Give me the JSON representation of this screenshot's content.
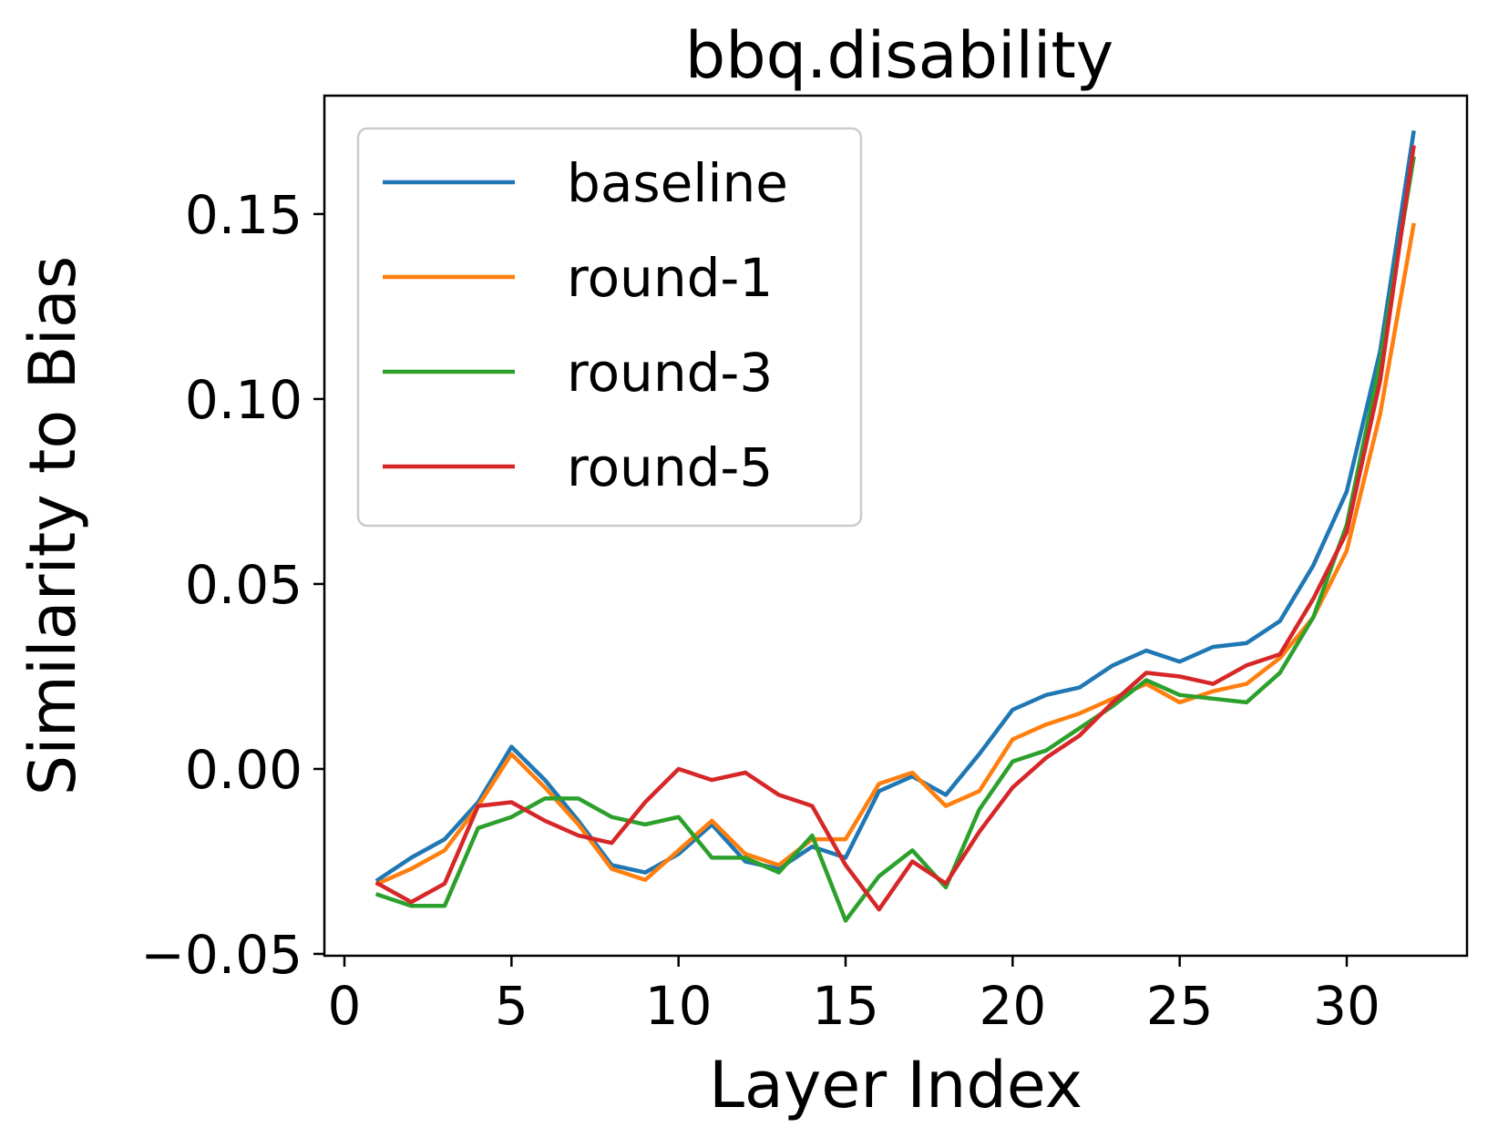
{
  "chart_data": {
    "type": "line",
    "title": "bbq.disability",
    "xlabel": "Layer Index",
    "ylabel": "Similarity to Bias",
    "xlim": [
      -0.6,
      33.6
    ],
    "ylim": [
      -0.0505,
      0.182
    ],
    "xticks": [
      0,
      5,
      10,
      15,
      20,
      25,
      30
    ],
    "xtick_labels": [
      "0",
      "5",
      "10",
      "15",
      "20",
      "25",
      "30"
    ],
    "yticks": [
      -0.05,
      0.0,
      0.05,
      0.1,
      0.15
    ],
    "ytick_labels": [
      "−0.05",
      "0.00",
      "0.05",
      "0.10",
      "0.15"
    ],
    "grid": false,
    "legend_position": "upper-left",
    "x": [
      1,
      2,
      3,
      4,
      5,
      6,
      7,
      8,
      9,
      10,
      11,
      12,
      13,
      14,
      15,
      16,
      17,
      18,
      19,
      20,
      21,
      22,
      23,
      24,
      25,
      26,
      27,
      28,
      29,
      30,
      31,
      32
    ],
    "series": [
      {
        "name": "baseline",
        "color": "#1f77b4",
        "values": [
          -0.03,
          -0.024,
          -0.019,
          -0.009,
          0.006,
          -0.003,
          -0.014,
          -0.026,
          -0.028,
          -0.023,
          -0.015,
          -0.025,
          -0.027,
          -0.021,
          -0.024,
          -0.006,
          -0.002,
          -0.007,
          0.004,
          0.016,
          0.02,
          0.022,
          0.028,
          0.032,
          0.029,
          0.033,
          0.034,
          0.04,
          0.055,
          0.075,
          0.113,
          0.172
        ]
      },
      {
        "name": "round-1",
        "color": "#ff7f0e",
        "values": [
          -0.031,
          -0.027,
          -0.022,
          -0.01,
          0.004,
          -0.005,
          -0.015,
          -0.027,
          -0.03,
          -0.022,
          -0.014,
          -0.023,
          -0.026,
          -0.019,
          -0.019,
          -0.004,
          -0.001,
          -0.01,
          -0.006,
          0.008,
          0.012,
          0.015,
          0.019,
          0.023,
          0.018,
          0.021,
          0.023,
          0.03,
          0.041,
          0.059,
          0.096,
          0.147
        ]
      },
      {
        "name": "round-3",
        "color": "#2ca02c",
        "values": [
          -0.034,
          -0.037,
          -0.037,
          -0.016,
          -0.013,
          -0.008,
          -0.008,
          -0.013,
          -0.015,
          -0.013,
          -0.024,
          -0.024,
          -0.028,
          -0.018,
          -0.041,
          -0.029,
          -0.022,
          -0.032,
          -0.011,
          0.002,
          0.005,
          0.011,
          0.017,
          0.024,
          0.02,
          0.019,
          0.018,
          0.026,
          0.041,
          0.066,
          0.11,
          0.165
        ]
      },
      {
        "name": "round-5",
        "color": "#d62728",
        "values": [
          -0.031,
          -0.036,
          -0.031,
          -0.01,
          -0.009,
          -0.014,
          -0.018,
          -0.02,
          -0.009,
          0.0,
          -0.003,
          -0.001,
          -0.007,
          -0.01,
          -0.026,
          -0.038,
          -0.025,
          -0.031,
          -0.017,
          -0.005,
          0.003,
          0.009,
          0.018,
          0.026,
          0.025,
          0.023,
          0.028,
          0.031,
          0.046,
          0.064,
          0.105,
          0.168
        ]
      }
    ]
  }
}
